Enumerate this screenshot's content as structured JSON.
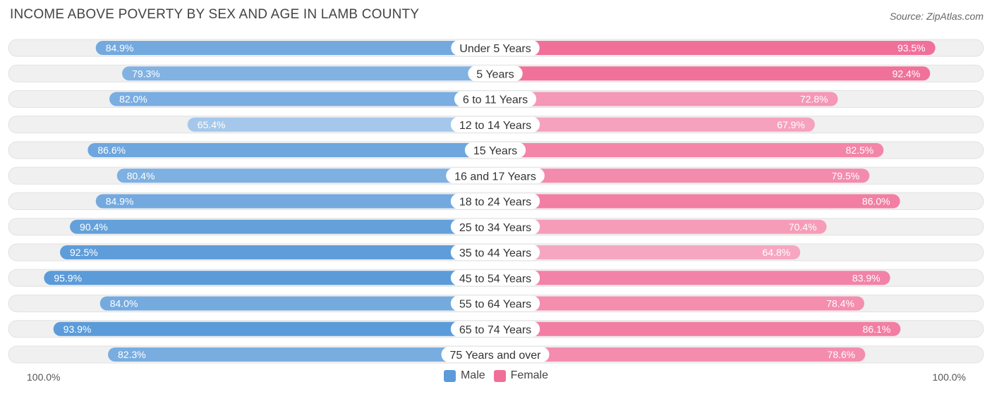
{
  "header": {
    "title": "INCOME ABOVE POVERTY BY SEX AND AGE IN LAMB COUNTY",
    "source": "Source: ZipAtlas.com"
  },
  "colors": {
    "male_strong": "#5b9bd9",
    "male_light": "#a9c9ec",
    "female_strong": "#f06f99",
    "female_light": "#f7a8c2",
    "track": "#f0f0f0"
  },
  "legend": {
    "male": "Male",
    "female": "Female"
  },
  "axis": {
    "left_label": "100.0%",
    "right_label": "100.0%"
  },
  "chart_data": {
    "type": "bar",
    "orientation": "horizontal-diverging",
    "categories": [
      "Under 5 Years",
      "5 Years",
      "6 to 11 Years",
      "12 to 14 Years",
      "15 Years",
      "16 and 17 Years",
      "18 to 24 Years",
      "25 to 34 Years",
      "35 to 44 Years",
      "45 to 54 Years",
      "55 to 64 Years",
      "65 to 74 Years",
      "75 Years and over"
    ],
    "series": [
      {
        "name": "Male",
        "values": [
          84.9,
          79.3,
          82.0,
          65.4,
          86.6,
          80.4,
          84.9,
          90.4,
          92.5,
          95.9,
          84.0,
          93.9,
          82.3
        ],
        "labels": [
          "84.9%",
          "79.3%",
          "82.0%",
          "65.4%",
          "86.6%",
          "80.4%",
          "84.9%",
          "90.4%",
          "92.5%",
          "95.9%",
          "84.0%",
          "93.9%",
          "82.3%"
        ]
      },
      {
        "name": "Female",
        "values": [
          93.5,
          92.4,
          72.8,
          67.9,
          82.5,
          79.5,
          86.0,
          70.4,
          64.8,
          83.9,
          78.4,
          86.1,
          78.6
        ],
        "labels": [
          "93.5%",
          "92.4%",
          "72.8%",
          "67.9%",
          "82.5%",
          "79.5%",
          "86.0%",
          "70.4%",
          "64.8%",
          "83.9%",
          "78.4%",
          "86.1%",
          "78.6%"
        ]
      }
    ],
    "xlim": [
      0,
      100
    ],
    "legend_position": "bottom-center"
  }
}
